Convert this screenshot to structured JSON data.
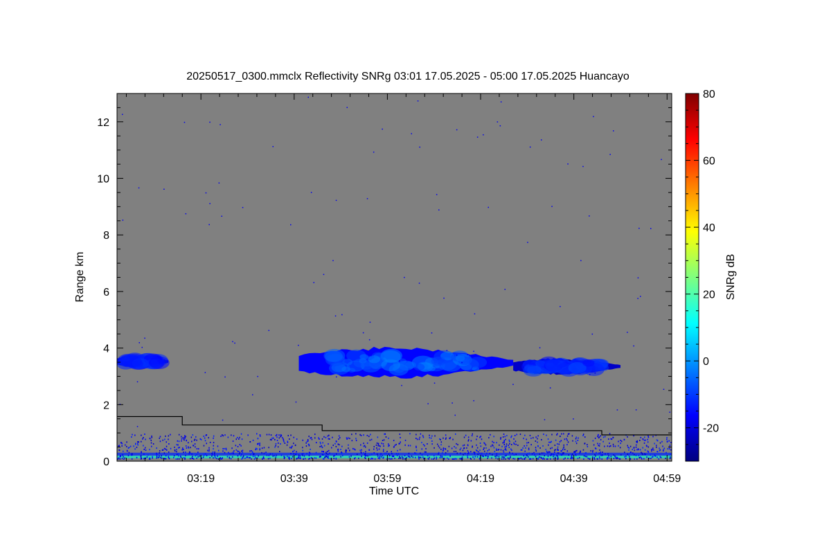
{
  "chart_data": {
    "type": "heatmap",
    "title": "20250517_0300.mmclx Reflectivity SNRg   03:01 17.05.2025 - 05:00 17.05.2025 Huancayo",
    "xlabel": "Time UTC",
    "ylabel": "Range km",
    "colorbar_label": "SNRg dB",
    "xlim": [
      "03:01",
      "05:00"
    ],
    "ylim": [
      0,
      13
    ],
    "x_ticks": [
      "03:19",
      "03:39",
      "03:59",
      "04:19",
      "04:39",
      "04:59"
    ],
    "y_ticks": [
      "0",
      "2",
      "4",
      "6",
      "8",
      "10",
      "12"
    ],
    "colorbar_ticks": [
      "-20",
      "0",
      "20",
      "40",
      "60",
      "80"
    ],
    "colorbar_range": [
      -30,
      80
    ],
    "background_color": "#808080",
    "colormap": [
      "#00007f",
      "#0000ff",
      "#007fff",
      "#00ffff",
      "#7fff7f",
      "#ffff00",
      "#ff7f00",
      "#ff0000",
      "#7f0000"
    ],
    "threshold_line": [
      {
        "x": "03:01",
        "y": 1.58
      },
      {
        "x": "03:15",
        "y": 1.58
      },
      {
        "x": "03:15",
        "y": 1.28
      },
      {
        "x": "03:45",
        "y": 1.28
      },
      {
        "x": "03:45",
        "y": 1.08
      },
      {
        "x": "04:45",
        "y": 1.08
      },
      {
        "x": "04:45",
        "y": 0.93
      },
      {
        "x": "05:00",
        "y": 0.93
      }
    ],
    "echo_layers": [
      {
        "x_start": "03:01",
        "x_end": "03:12",
        "y_bottom": 3.3,
        "y_top": 3.75,
        "snr_db": -18
      },
      {
        "x_start": "03:40",
        "x_end": "04:26",
        "y_bottom": 2.9,
        "y_top": 4.05,
        "snr_db": -10
      },
      {
        "x_start": "04:26",
        "x_end": "04:49",
        "y_bottom": 3.05,
        "y_top": 3.65,
        "snr_db": -16
      }
    ],
    "near_surface_clutter": {
      "y_bottom": 0.1,
      "y_top": 1.0,
      "snr_db": -20
    }
  }
}
